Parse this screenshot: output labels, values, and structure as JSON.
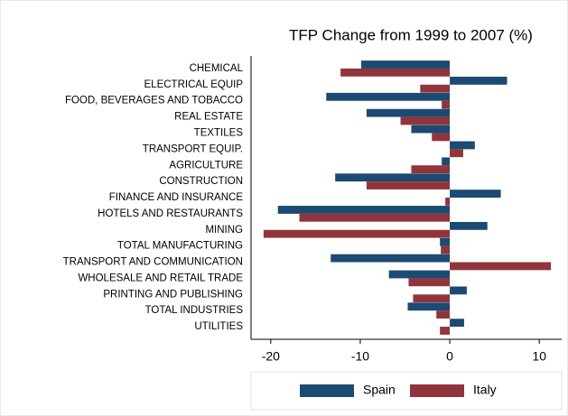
{
  "chart_data": {
    "type": "hbar",
    "title": "TFP Change from 1999 to 2007 (%)",
    "categories": [
      "CHEMICAL",
      "ELECTRICAL EQUIP",
      "FOOD, BEVERAGES AND TOBACCO",
      "REAL ESTATE",
      "TEXTILES",
      "TRANSPORT EQUIP.",
      "AGRICULTURE",
      "CONSTRUCTION",
      "FINANCE AND INSURANCE",
      "HOTELS AND RESTAURANTS",
      "MINING",
      "TOTAL MANUFACTURING",
      "TRANSPORT AND COMMUNICATION",
      "WHOLESALE AND RETAIL TRADE",
      "PRINTING AND PUBLISHING",
      "TOTAL INDUSTRIES",
      "UTILITIES"
    ],
    "series": [
      {
        "name": "Spain",
        "color": "#1b4a72",
        "values": [
          -9.9,
          6.4,
          -13.8,
          -9.3,
          -4.3,
          2.8,
          -0.9,
          -12.8,
          5.7,
          -19.2,
          4.2,
          -1.1,
          -13.3,
          -6.8,
          1.9,
          -4.7,
          1.6
        ]
      },
      {
        "name": "Italy",
        "color": "#90353b",
        "values": [
          -12.2,
          -3.3,
          -0.9,
          -5.5,
          -2.0,
          1.5,
          -4.3,
          -9.3,
          -0.5,
          -16.8,
          -20.8,
          -1.0,
          11.3,
          -4.6,
          -4.1,
          -1.5,
          -1.1
        ]
      }
    ],
    "xlim": [
      -22.2,
      12.5
    ],
    "xticks": [
      -20,
      -10,
      0,
      10
    ],
    "legend": "bottom"
  }
}
